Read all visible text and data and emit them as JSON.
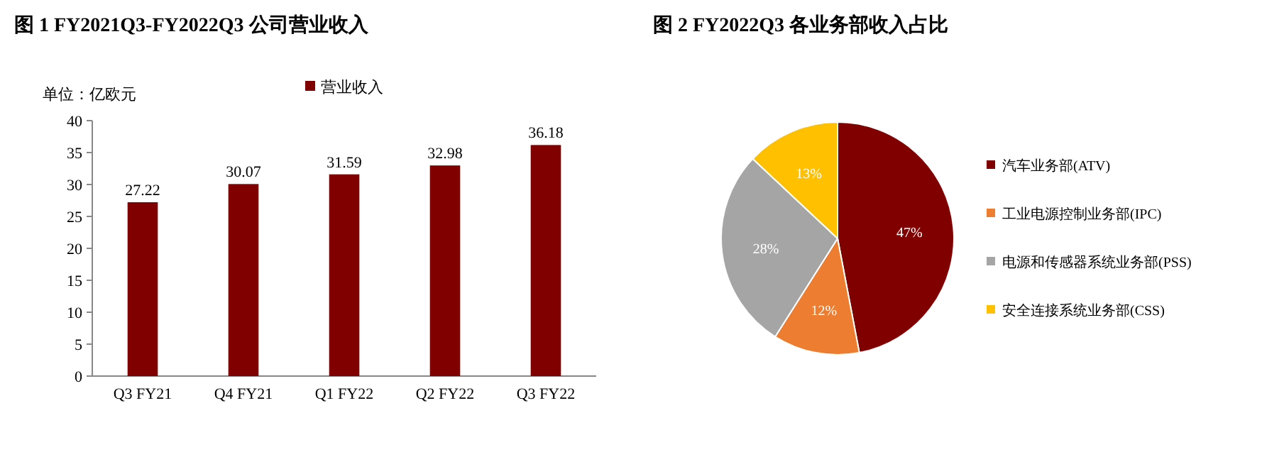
{
  "chart_data": [
    {
      "type": "bar",
      "title": "图 1 FY2021Q3-FY2022Q3 公司营业收入",
      "ylabel": "单位：亿欧元",
      "categories": [
        "Q3 FY21",
        "Q4 FY21",
        "Q1 FY22",
        "Q2 FY22",
        "Q3 FY22"
      ],
      "series": [
        {
          "name": "营业收入",
          "color": "#800000",
          "values": [
            27.22,
            30.07,
            31.59,
            32.98,
            36.18
          ]
        }
      ],
      "ylim": [
        0,
        40
      ],
      "yticks": [
        0,
        5,
        10,
        15,
        20,
        25,
        30,
        35,
        40
      ],
      "data_labels": true,
      "legend": "top",
      "grid": false
    },
    {
      "type": "pie",
      "title": "图 2 FY2022Q3 各业务部收入占比",
      "categories": [
        "汽车业务部(ATV)",
        "工业电源控制业务部(IPC)",
        "电源和传感器系统业务部(PSS)",
        "安全连接系统业务部(CSS)"
      ],
      "values": [
        47,
        12,
        28,
        13
      ],
      "colors": [
        "#800000",
        "#ed7d31",
        "#a5a5a5",
        "#ffc000"
      ],
      "value_labels": [
        "47%",
        "12%",
        "28%",
        "13%"
      ],
      "legend": "right"
    }
  ]
}
